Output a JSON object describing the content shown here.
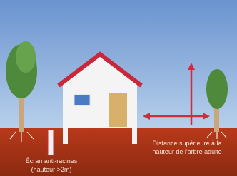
{
  "labels": {
    "root_barrier": {
      "line1": "Écran anti-racines",
      "line2": "(hauteur >2m)"
    },
    "distance": {
      "line1": "Distance supérieure à la",
      "line2": "hauteur de l'arbre adulte"
    }
  }
}
